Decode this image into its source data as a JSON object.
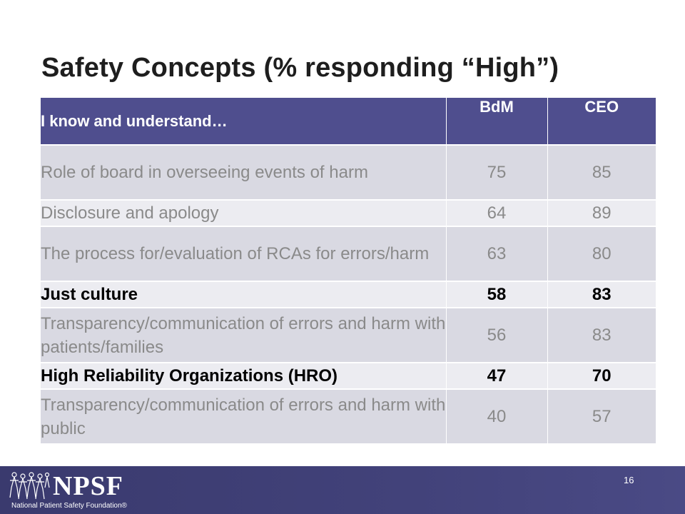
{
  "slide": {
    "title": "Safety Concepts (% responding “High”)",
    "page_number": "16"
  },
  "table": {
    "headers": [
      "I know and understand…",
      "BdM",
      "CEO"
    ],
    "rows": [
      {
        "label": "Role of board in overseeing events of harm",
        "bdm": "75",
        "ceo": "85",
        "bold": false
      },
      {
        "label": "Disclosure and apology",
        "bdm": "64",
        "ceo": "89",
        "bold": false
      },
      {
        "label": "The process for/evaluation of RCAs for errors/harm",
        "bdm": "63",
        "ceo": "80",
        "bold": false
      },
      {
        "label": "Just culture",
        "bdm": "58",
        "ceo": "83",
        "bold": true
      },
      {
        "label": "Transparency/communication of errors and harm with patients/families",
        "bdm": "56",
        "ceo": "83",
        "bold": false
      },
      {
        "label": "High Reliability Organizations (HRO)",
        "bdm": "47",
        "ceo": "70",
        "bold": true
      },
      {
        "label": "Transparency/communication of errors and harm with public",
        "bdm": "40",
        "ceo": "57",
        "bold": false
      }
    ]
  },
  "footer": {
    "logo_text": "NPSF",
    "logo_subtitle": "National Patient Safety Foundation®",
    "logo_icon": "people-figures-icon"
  },
  "colors": {
    "header_bg": "#4f4e8e",
    "row_dark": "#d9d9e2",
    "row_light": "#ececf1",
    "footer_bg": "#3a3a6e"
  }
}
